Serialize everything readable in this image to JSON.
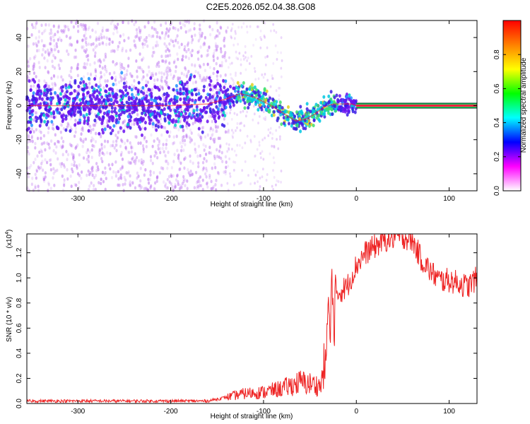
{
  "figure": {
    "title": "C2E5.2026.052.04.38.G08"
  },
  "chart_data": [
    {
      "type": "heatmap",
      "name": "spectrogram",
      "xlabel": "Height of straight line (km)",
      "ylabel": "Frequency (Hz)",
      "xlim": [
        -355,
        130
      ],
      "ylim": [
        -50,
        50
      ],
      "xticks": [
        -300,
        -200,
        -100,
        0,
        100
      ],
      "yticks": [
        -40,
        -20,
        0,
        20,
        40
      ],
      "grid": false,
      "colorbar": {
        "label": "Normalized spectral amplitude",
        "range": [
          0,
          1
        ],
        "ticks": [
          "0.0",
          "0.2",
          "0.4",
          "0.6",
          "0.8"
        ],
        "colors": [
          "#ffffff",
          "#ff00ff",
          "#0000ff",
          "#00ffff",
          "#00ff00",
          "#ffff00",
          "#ff8000",
          "#ff0000"
        ]
      },
      "tracked_frequency": {
        "x": [
          -355,
          -300,
          -250,
          -200,
          -160,
          -140,
          -125,
          -110,
          -95,
          -80,
          -65,
          -55,
          -45,
          -35,
          -25,
          -15,
          -5,
          0,
          130
        ],
        "y": [
          0,
          0,
          0,
          0,
          1,
          4,
          7,
          5,
          1,
          -4,
          -9,
          -8,
          -5,
          -1,
          1,
          1,
          1,
          0,
          0
        ]
      }
    },
    {
      "type": "line",
      "name": "snr",
      "xlabel": "Height of straight line (km)",
      "ylabel": "SNR (10 * v/v)",
      "y_scale_label": "(x10",
      "y_scale_exponent": "4",
      "xlim": [
        -355,
        130
      ],
      "ylim": [
        0,
        1.35
      ],
      "xticks": [
        -300,
        -200,
        -100,
        0,
        100
      ],
      "yticks": [
        "0.0",
        "0.2",
        "0.4",
        "0.6",
        "0.8",
        "1.0",
        "1.2"
      ],
      "series": [
        {
          "name": "SNR",
          "color": "#ee2222",
          "x": [
            -355,
            -300,
            -250,
            -200,
            -160,
            -140,
            -120,
            -100,
            -80,
            -60,
            -45,
            -38,
            -33,
            -30,
            -26,
            -20,
            -10,
            0,
            10,
            20,
            30,
            40,
            50,
            60,
            70,
            80,
            90,
            100,
            110,
            120,
            130
          ],
          "y": [
            0.02,
            0.02,
            0.02,
            0.02,
            0.02,
            0.05,
            0.08,
            0.09,
            0.12,
            0.17,
            0.15,
            0.14,
            0.4,
            1.0,
            0.9,
            0.88,
            0.93,
            1.1,
            1.2,
            1.25,
            1.3,
            1.32,
            1.33,
            1.3,
            1.15,
            1.05,
            0.98,
            0.98,
            0.96,
            0.93,
            1.0
          ]
        }
      ]
    }
  ]
}
